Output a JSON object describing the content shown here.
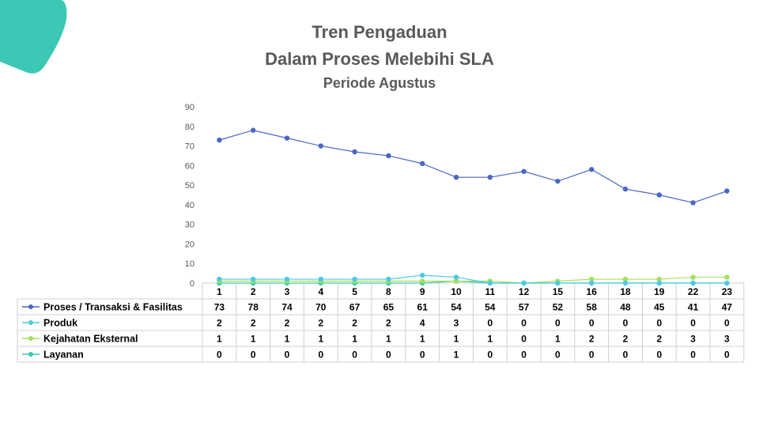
{
  "slide": {
    "title_line1": "Tren Pengaduan",
    "title_line2": "Dalam Proses Melebihi SLA",
    "title_line3": "Periode Agustus",
    "accent_color": "#3cc8b4"
  },
  "chart_data": {
    "type": "line",
    "title": "Tren Pengaduan Dalam Proses Melebihi SLA",
    "subtitle": "Periode Agustus",
    "categories": [
      "1",
      "2",
      "3",
      "4",
      "5",
      "8",
      "9",
      "10",
      "11",
      "12",
      "15",
      "16",
      "18",
      "19",
      "22",
      "23"
    ],
    "yticks": [
      0,
      10,
      20,
      30,
      40,
      50,
      60,
      70,
      80,
      90
    ],
    "ylim": [
      0,
      90
    ],
    "grid": false,
    "legend": "data-table",
    "series": [
      {
        "name": "Proses / Transaksi & Fasilitas",
        "color": "#4a67c1",
        "values": [
          73,
          78,
          74,
          70,
          67,
          65,
          61,
          54,
          54,
          57,
          52,
          58,
          48,
          45,
          41,
          47
        ]
      },
      {
        "name": "Produk",
        "color": "#4dc9e6",
        "values": [
          2,
          2,
          2,
          2,
          2,
          2,
          4,
          3,
          0,
          0,
          0,
          0,
          0,
          0,
          0,
          0
        ]
      },
      {
        "name": "Kejahatan Eksternal",
        "color": "#a6e05a",
        "values": [
          1,
          1,
          1,
          1,
          1,
          1,
          1,
          1,
          1,
          0,
          1,
          2,
          2,
          2,
          3,
          3
        ]
      },
      {
        "name": "Layanan",
        "color": "#3ec9b0",
        "values": [
          0,
          0,
          0,
          0,
          0,
          0,
          0,
          1,
          0,
          0,
          0,
          0,
          0,
          0,
          0,
          0
        ]
      }
    ]
  }
}
